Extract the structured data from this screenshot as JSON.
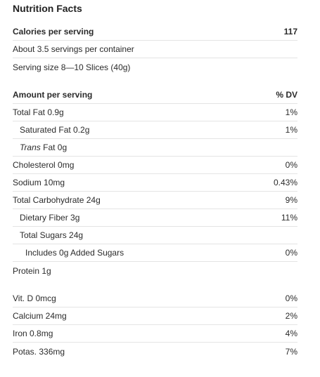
{
  "title": "Nutrition Facts",
  "calories": {
    "label": "Calories per serving",
    "value": "117"
  },
  "servings_per_container": "About 3.5 servings per container",
  "serving_size": "Serving size 8—10 Slices (40g)",
  "amount_header": {
    "label": "Amount per serving",
    "dv": "% DV"
  },
  "nutrients": {
    "total_fat": {
      "label": "Total Fat 0.9g",
      "dv": "1%"
    },
    "saturated_fat": {
      "label": "Saturated Fat 0.2g",
      "dv": "1%"
    },
    "trans_fat": {
      "italic": "Trans",
      "rest": " Fat 0g",
      "dv": ""
    },
    "cholesterol": {
      "label": "Cholesterol 0mg",
      "dv": "0%"
    },
    "sodium": {
      "label": "Sodium 10mg",
      "dv": "0.43%"
    },
    "total_carbohydrate": {
      "label": "Total Carbohydrate 24g",
      "dv": "9%"
    },
    "dietary_fiber": {
      "label": "Dietary Fiber 3g",
      "dv": "11%"
    },
    "total_sugars": {
      "label": "Total Sugars 24g",
      "dv": ""
    },
    "added_sugars": {
      "label": "Includes 0g Added Sugars",
      "dv": "0%"
    },
    "protein": {
      "label": "Protein 1g",
      "dv": ""
    }
  },
  "vitamins": {
    "vit_d": {
      "label": "Vit. D 0mcg",
      "dv": "0%"
    },
    "calcium": {
      "label": "Calcium 24mg",
      "dv": "2%"
    },
    "iron": {
      "label": "Iron 0.8mg",
      "dv": "4%"
    },
    "potassium": {
      "label": "Potas. 336mg",
      "dv": "7%"
    }
  }
}
